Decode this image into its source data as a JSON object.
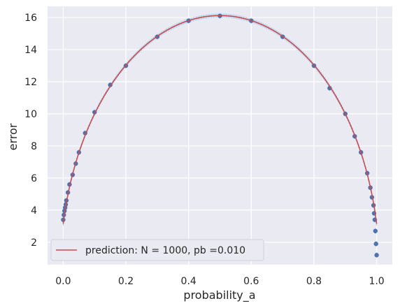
{
  "chart_data": {
    "type": "scatter",
    "title": "",
    "xlabel": "probability_a",
    "ylabel": "error",
    "xlim": [
      -0.05,
      1.05
    ],
    "ylim": [
      0.6,
      16.7
    ],
    "xticks": [
      "0.0",
      "0.2",
      "0.4",
      "0.6",
      "0.8",
      "1.0"
    ],
    "xtick_values": [
      0.0,
      0.2,
      0.4,
      0.6,
      0.8,
      1.0
    ],
    "yticks": [
      "2",
      "4",
      "6",
      "8",
      "10",
      "12",
      "14",
      "16"
    ],
    "ytick_values": [
      2,
      4,
      6,
      8,
      10,
      12,
      14,
      16
    ],
    "grid": true,
    "legend_position": "lower-left",
    "prediction": {
      "label": "prediction: N = 1000, pb =0.010",
      "color": "#c44e52",
      "formula": "error = sqrt(N * (p*(1-p) + pb*(1-pb)))",
      "N": 1000,
      "pb": 0.01,
      "x": [
        0.0,
        0.01,
        0.02,
        0.05,
        0.1,
        0.2,
        0.3,
        0.4,
        0.5,
        0.6,
        0.7,
        0.8,
        0.9,
        0.95,
        0.98,
        0.99,
        1.0
      ],
      "y": [
        3.15,
        4.45,
        5.43,
        7.58,
        10.01,
        12.98,
        14.83,
        15.81,
        16.12,
        15.81,
        14.83,
        12.98,
        10.01,
        7.58,
        5.43,
        4.45,
        3.15
      ]
    },
    "observed": {
      "marker_color": "#4c72b0",
      "errorbar_color": "#a1c4e8",
      "x": [
        0.0,
        0.002,
        0.004,
        0.006,
        0.008,
        0.01,
        0.015,
        0.02,
        0.03,
        0.04,
        0.05,
        0.07,
        0.1,
        0.15,
        0.2,
        0.3,
        0.4,
        0.5,
        0.6,
        0.7,
        0.8,
        0.85,
        0.9,
        0.93,
        0.95,
        0.97,
        0.98,
        0.985,
        0.99,
        0.992,
        0.994,
        0.996,
        0.998,
        1.0
      ],
      "y": [
        3.4,
        3.7,
        3.95,
        4.15,
        4.35,
        4.6,
        5.1,
        5.6,
        6.2,
        6.9,
        7.6,
        8.8,
        10.1,
        11.8,
        13.0,
        14.8,
        15.8,
        16.1,
        15.8,
        14.8,
        13.0,
        11.6,
        10.0,
        8.6,
        7.6,
        6.3,
        5.4,
        4.8,
        4.3,
        3.8,
        3.4,
        2.7,
        1.9,
        1.2
      ]
    }
  }
}
